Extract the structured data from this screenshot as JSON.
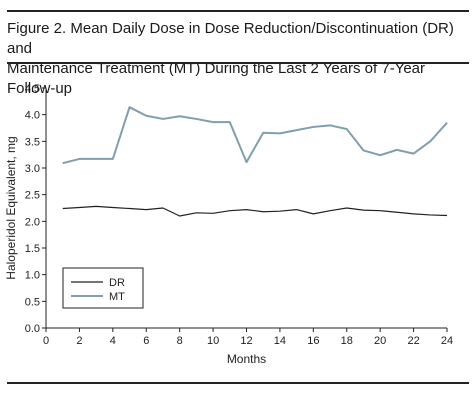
{
  "figure": {
    "title_line1": "Figure 2. Mean Daily Dose in Dose Reduction/Discontinuation (DR) and",
    "title_line2": "Maintenance Treatment (MT) During the Last 2 Years of 7-Year Follow-up"
  },
  "chart_data": {
    "type": "line",
    "xlabel": "Months",
    "ylabel": "Haloperidol Equivalent, mg",
    "xlim": [
      0,
      24
    ],
    "ylim": [
      0,
      4.5
    ],
    "x_ticks": [
      0,
      2,
      4,
      6,
      8,
      10,
      12,
      14,
      16,
      18,
      20,
      22,
      24
    ],
    "y_ticks": [
      "0.0",
      "0.5",
      "1.0",
      "1.5",
      "2.0",
      "2.5",
      "3.0",
      "3.5",
      "4.0",
      "4.5"
    ],
    "grid": false,
    "legend_position": "bottom-left",
    "x": [
      1,
      2,
      3,
      4,
      5,
      6,
      7,
      8,
      9,
      10,
      11,
      12,
      13,
      14,
      15,
      16,
      17,
      18,
      19,
      20,
      21,
      22,
      23,
      24
    ],
    "series": [
      {
        "name": "DR",
        "color": "#222222",
        "values": [
          2.24,
          2.26,
          2.28,
          2.26,
          2.24,
          2.22,
          2.25,
          2.1,
          2.16,
          2.15,
          2.2,
          2.22,
          2.18,
          2.19,
          2.22,
          2.14,
          2.2,
          2.25,
          2.21,
          2.2,
          2.17,
          2.14,
          2.12,
          2.11
        ]
      },
      {
        "name": "MT",
        "color": "#7f9fad",
        "values": [
          3.09,
          3.17,
          3.17,
          3.17,
          4.14,
          3.98,
          3.92,
          3.97,
          3.92,
          3.86,
          3.86,
          3.11,
          3.66,
          3.65,
          3.71,
          3.77,
          3.8,
          3.73,
          3.33,
          3.24,
          3.34,
          3.27,
          3.5,
          3.85
        ]
      }
    ]
  }
}
